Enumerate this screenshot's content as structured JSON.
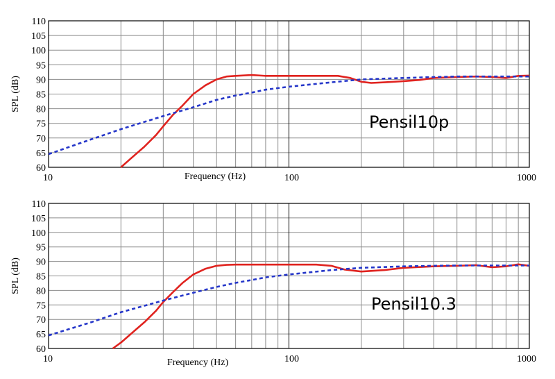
{
  "chart_data": [
    {
      "type": "line",
      "xscale": "log",
      "xlim": [
        10,
        1000
      ],
      "ylim": [
        60,
        110
      ],
      "xticks": [
        {
          "value": 10,
          "label": "10"
        },
        {
          "value": 100,
          "label": "100"
        },
        {
          "value": 1000,
          "label": "1000"
        }
      ],
      "yticks": [
        60,
        65,
        70,
        75,
        80,
        85,
        90,
        95,
        100,
        105,
        110
      ],
      "xlabel": "Frequency (Hz)",
      "ylabel": "SPL (dB)",
      "annotation": "Pensil10p",
      "grid": true,
      "series": [
        {
          "style": "solid",
          "color": "#e0231f",
          "x": [
            20,
            22,
            25,
            28,
            30,
            33,
            36,
            40,
            45,
            50,
            55,
            60,
            70,
            80,
            100,
            130,
            160,
            180,
            200,
            220,
            250,
            300,
            350,
            400,
            500,
            600,
            700,
            800,
            900,
            1000
          ],
          "y": [
            60,
            63,
            67,
            71,
            74,
            78,
            81,
            85,
            88,
            90,
            91,
            91.2,
            91.5,
            91.2,
            91.2,
            91.2,
            91.2,
            90.5,
            89.2,
            88.8,
            89,
            89.4,
            89.8,
            90.5,
            90.8,
            91,
            90.8,
            90.5,
            91.2,
            91.3
          ]
        },
        {
          "style": "dashed",
          "color": "#2536c9",
          "x": [
            10,
            15,
            20,
            30,
            40,
            50,
            60,
            70,
            80,
            100,
            150,
            200,
            300,
            400,
            500,
            700,
            1000
          ],
          "y": [
            64.5,
            69.5,
            73,
            77.5,
            80.5,
            83,
            84.5,
            85.5,
            86.5,
            87.5,
            89,
            90,
            90.5,
            90.8,
            91,
            91,
            91
          ]
        }
      ]
    },
    {
      "type": "line",
      "xscale": "log",
      "xlim": [
        10,
        1000
      ],
      "ylim": [
        60,
        110
      ],
      "xticks": [
        {
          "value": 10,
          "label": "10"
        },
        {
          "value": 100,
          "label": "100"
        },
        {
          "value": 1000,
          "label": "1000"
        }
      ],
      "yticks": [
        60,
        65,
        70,
        75,
        80,
        85,
        90,
        95,
        100,
        105,
        110
      ],
      "xlabel": "Frequency (Hz)",
      "ylabel": "SPL (dB)",
      "annotation": "Pensil10.3",
      "grid": true,
      "series": [
        {
          "style": "solid",
          "color": "#e0231f",
          "x": [
            18.5,
            20,
            22,
            25,
            28,
            30,
            33,
            36,
            40,
            45,
            50,
            55,
            60,
            70,
            80,
            100,
            130,
            150,
            170,
            200,
            250,
            300,
            400,
            500,
            600,
            700,
            800,
            900,
            1000
          ],
          "y": [
            60,
            62,
            65,
            69,
            73,
            76,
            79.5,
            82.5,
            85.5,
            87.5,
            88.5,
            88.8,
            88.9,
            88.9,
            88.9,
            88.9,
            88.9,
            88.5,
            87.2,
            86.5,
            87,
            87.8,
            88.3,
            88.5,
            88.7,
            88,
            88.3,
            89,
            88.5
          ]
        },
        {
          "style": "dashed",
          "color": "#2536c9",
          "x": [
            10,
            15,
            20,
            30,
            40,
            50,
            60,
            70,
            80,
            100,
            150,
            200,
            300,
            400,
            500,
            700,
            1000
          ],
          "y": [
            64.5,
            69,
            72.5,
            76.5,
            79.2,
            81.2,
            82.6,
            83.6,
            84.5,
            85.5,
            87,
            87.8,
            88.3,
            88.5,
            88.6,
            88.6,
            88.6
          ]
        }
      ]
    }
  ]
}
